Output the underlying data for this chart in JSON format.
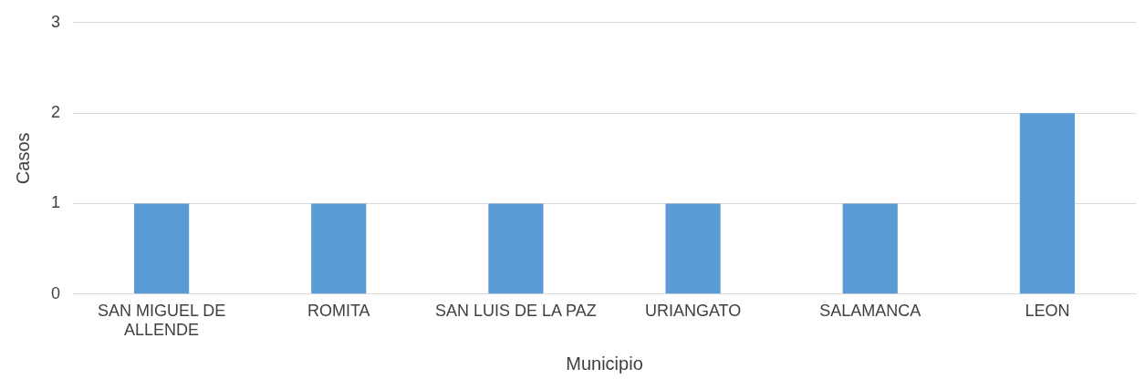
{
  "chart_data": {
    "type": "bar",
    "xlabel": "Municipio",
    "ylabel": "Casos",
    "categories": [
      "SAN MIGUEL DE ALLENDE",
      "ROMITA",
      "SAN LUIS DE LA PAZ",
      "URIANGATO",
      "SALAMANCA",
      "LEON"
    ],
    "values": [
      1,
      1,
      1,
      1,
      1,
      2
    ],
    "color": "#5b9bd5",
    "ylim": [
      0,
      3
    ],
    "yticks": [
      0,
      1,
      2,
      3
    ],
    "grid": "y",
    "legend": false
  }
}
